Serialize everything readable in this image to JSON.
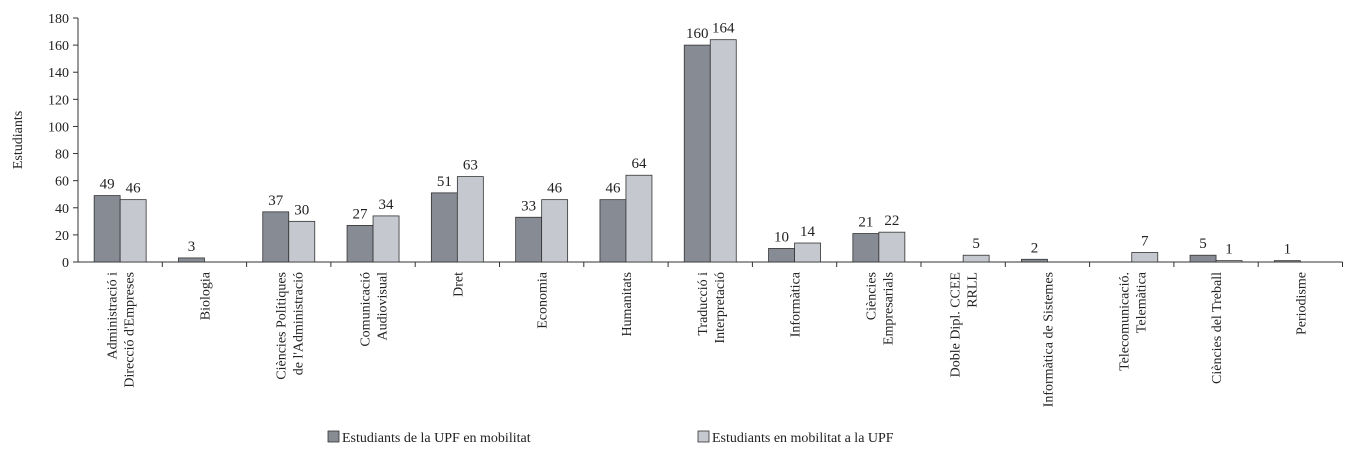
{
  "chart_data": {
    "type": "bar",
    "y_label": "Estudiants",
    "categories": [
      [
        "Administració i",
        "Direcció d'Empreses"
      ],
      [
        "Biologia"
      ],
      [
        "Ciències Polítiques",
        "de l'Administració"
      ],
      [
        "Comunicació",
        "Audiovisual"
      ],
      [
        "Dret"
      ],
      [
        "Economia"
      ],
      [
        "Humanitats"
      ],
      [
        "Traducció i",
        "Interpretació"
      ],
      [
        "Informàtica"
      ],
      [
        "Ciències",
        "Empresarials"
      ],
      [
        "Doble Dipl. CCEE",
        "RRLL"
      ],
      [
        "Informàtica de Sistemes"
      ],
      [
        "Telecomunicació.",
        "Telemàtica"
      ],
      [
        "Ciències del Treball"
      ],
      [
        "Periodisme"
      ]
    ],
    "series": [
      {
        "name": "Estudiants de la UPF en mobilitat",
        "color": "#878c94",
        "values": [
          49,
          3,
          37,
          27,
          51,
          33,
          46,
          160,
          10,
          21,
          null,
          2,
          null,
          5,
          1
        ]
      },
      {
        "name": "Estudiants en mobilitat a la UPF",
        "color": "#c5c8cf",
        "values": [
          46,
          null,
          30,
          34,
          63,
          46,
          64,
          164,
          14,
          22,
          5,
          null,
          7,
          1,
          null
        ]
      }
    ],
    "ylim": [
      0,
      180
    ],
    "yticks": [
      0,
      20,
      40,
      60,
      80,
      100,
      120,
      140,
      160,
      180
    ]
  }
}
